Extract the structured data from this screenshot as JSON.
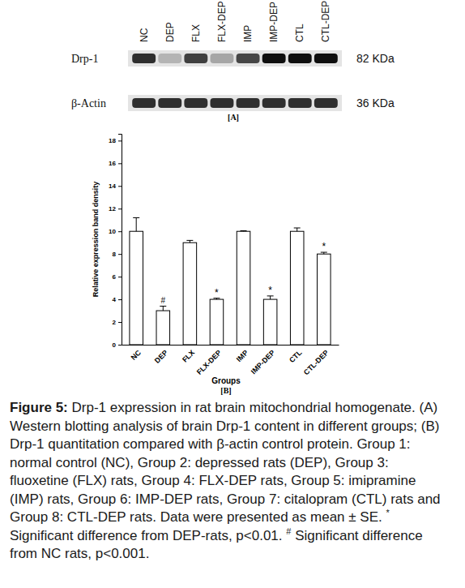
{
  "chart_data": {
    "type": "bar",
    "x_label": "Groups",
    "y_label": "Relative expression band density",
    "panel_label": "[B]",
    "categories": [
      "NC",
      "DEP",
      "FLX",
      "FLX-DEP",
      "IMP",
      "IMP-DEP",
      "CTL",
      "CTL-DEP"
    ],
    "values": [
      10,
      3,
      9,
      4,
      10,
      4,
      10,
      8
    ],
    "errors": [
      1.2,
      0.4,
      0.2,
      0.1,
      0.05,
      0.3,
      0.3,
      0.15
    ],
    "color": "#ffffff",
    "ylim": [
      0,
      18.6
    ],
    "yticks": [
      0,
      2,
      4,
      6,
      8,
      10,
      12,
      14,
      16,
      18
    ],
    "grid": false,
    "annotations": [
      {
        "category": "DEP",
        "text": "#"
      },
      {
        "category": "FLX-DEP",
        "text": "*"
      },
      {
        "category": "IMP-DEP",
        "text": "*"
      },
      {
        "category": "CTL-DEP",
        "text": "*"
      }
    ]
  },
  "blot": {
    "panel_label": "[A]",
    "lanes": [
      "NC",
      "DEP",
      "FLX",
      "FLX-DEP",
      "IMP",
      "IMP-DEP",
      "CTL",
      "CTL-DEP"
    ],
    "rows": [
      {
        "label": "Drp-1",
        "size": "82 KDa",
        "intensity": [
          0.85,
          0.4,
          0.8,
          0.45,
          0.78,
          0.95,
          0.95,
          0.95
        ]
      },
      {
        "label": "β-Actin",
        "size": "36 KDa",
        "intensity": [
          0.85,
          0.85,
          0.85,
          0.85,
          0.85,
          0.85,
          0.85,
          0.85
        ]
      }
    ]
  },
  "caption": {
    "label": "Figure 5:",
    "segments": [
      {
        "text": " Drp-1 expression in rat brain mitochondrial homogenate. (A) Western blotting analysis of brain Drp-1 content in different groups; (B) Drp-1 quantitation compared with β-actin control protein. Group 1: normal control (NC), Group 2: depressed rats (DEP), Group 3: fluoxetine (FLX) rats, Group 4: FLX-DEP rats, Group 5: imipramine (IMP) rats, Group 6: IMP-DEP rats, Group 7: citalopram (CTL) rats and Group 8: CTL-DEP rats. Data were presented as mean ± SE. ",
        "superscript": false
      },
      {
        "text": "*",
        "superscript": true
      },
      {
        "text": " Significant difference from DEP-rats, p<0.01. ",
        "superscript": false
      },
      {
        "text": "#",
        "superscript": true
      },
      {
        "text": " Significant difference from NC rats, p<0.001.",
        "superscript": false
      }
    ]
  }
}
